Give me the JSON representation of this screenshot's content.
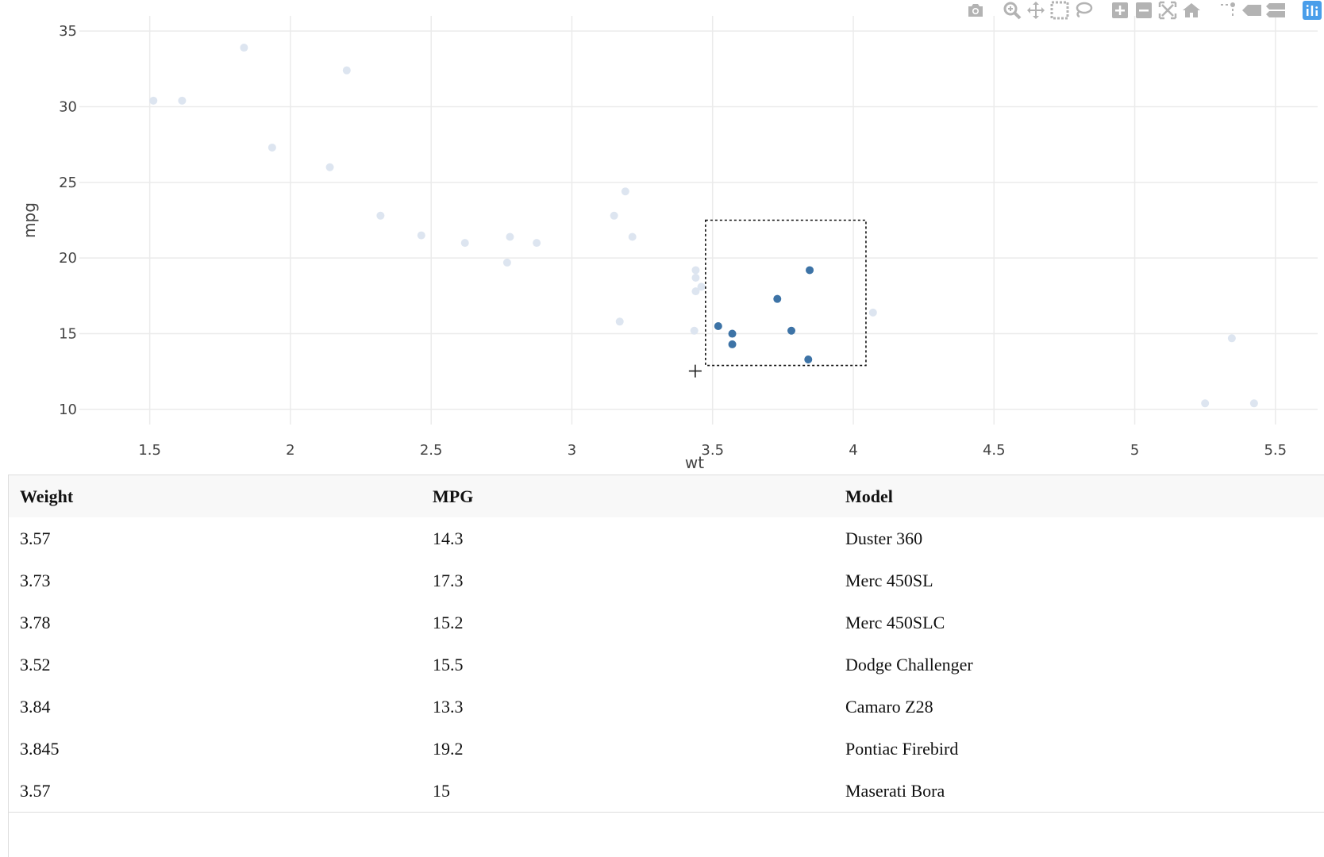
{
  "chart_data": {
    "type": "scatter",
    "xlabel": "wt",
    "ylabel": "mpg",
    "xlim": [
      1.25,
      5.65
    ],
    "ylim": [
      9,
      36
    ],
    "xticks": [
      1.5,
      2,
      2.5,
      3,
      3.5,
      4,
      4.5,
      5,
      5.5
    ],
    "yticks": [
      10,
      15,
      20,
      25,
      30,
      35
    ],
    "xtick_labels": [
      "1.5",
      "2",
      "2.5",
      "3",
      "3.5",
      "4",
      "4.5",
      "5",
      "5.5"
    ],
    "ytick_labels": [
      "10",
      "15",
      "20",
      "25",
      "30",
      "35"
    ],
    "grid": true,
    "selection_box": {
      "x": [
        3.475,
        4.045
      ],
      "y": [
        12.9,
        22.5
      ]
    },
    "colors": {
      "selected": "#3d73a6",
      "unselected": "#dde5f0",
      "grid": "#ebebeb",
      "modebar": "#b3b3b3",
      "modebar_active": "#4a9eea"
    },
    "points": [
      {
        "x": 2.62,
        "y": 21.0,
        "selected": false
      },
      {
        "x": 2.875,
        "y": 21.0,
        "selected": false
      },
      {
        "x": 2.32,
        "y": 22.8,
        "selected": false
      },
      {
        "x": 3.215,
        "y": 21.4,
        "selected": false
      },
      {
        "x": 3.44,
        "y": 18.7,
        "selected": false
      },
      {
        "x": 3.46,
        "y": 18.1,
        "selected": false
      },
      {
        "x": 3.57,
        "y": 14.3,
        "selected": true
      },
      {
        "x": 3.19,
        "y": 24.4,
        "selected": false
      },
      {
        "x": 3.15,
        "y": 22.8,
        "selected": false
      },
      {
        "x": 3.44,
        "y": 19.2,
        "selected": false
      },
      {
        "x": 3.44,
        "y": 17.8,
        "selected": false
      },
      {
        "x": 4.07,
        "y": 16.4,
        "selected": false
      },
      {
        "x": 3.73,
        "y": 17.3,
        "selected": true
      },
      {
        "x": 3.78,
        "y": 15.2,
        "selected": true
      },
      {
        "x": 5.25,
        "y": 10.4,
        "selected": false
      },
      {
        "x": 5.424,
        "y": 10.4,
        "selected": false
      },
      {
        "x": 5.345,
        "y": 14.7,
        "selected": false
      },
      {
        "x": 2.2,
        "y": 32.4,
        "selected": false
      },
      {
        "x": 1.615,
        "y": 30.4,
        "selected": false
      },
      {
        "x": 1.835,
        "y": 33.9,
        "selected": false
      },
      {
        "x": 2.465,
        "y": 21.5,
        "selected": false
      },
      {
        "x": 3.52,
        "y": 15.5,
        "selected": true
      },
      {
        "x": 3.435,
        "y": 15.2,
        "selected": false
      },
      {
        "x": 3.84,
        "y": 13.3,
        "selected": true
      },
      {
        "x": 3.845,
        "y": 19.2,
        "selected": true
      },
      {
        "x": 1.935,
        "y": 27.3,
        "selected": false
      },
      {
        "x": 2.14,
        "y": 26.0,
        "selected": false
      },
      {
        "x": 1.513,
        "y": 30.4,
        "selected": false
      },
      {
        "x": 3.17,
        "y": 15.8,
        "selected": false
      },
      {
        "x": 2.77,
        "y": 19.7,
        "selected": false
      },
      {
        "x": 3.57,
        "y": 15.0,
        "selected": true
      },
      {
        "x": 2.78,
        "y": 21.4,
        "selected": false
      }
    ]
  },
  "modebar": {
    "buttons": [
      "camera-icon",
      "zoom-icon",
      "pan-icon",
      "box-select-icon",
      "lasso-select-icon",
      "zoom-in-icon",
      "zoom-out-icon",
      "autoscale-icon",
      "reset-axes-icon",
      "spike-lines-icon",
      "hover-closest-icon",
      "hover-compare-icon",
      "plotly-logo-icon"
    ]
  },
  "table": {
    "headers": [
      "Weight",
      "MPG",
      "Model"
    ],
    "rows": [
      [
        "3.57",
        "14.3",
        "Duster 360"
      ],
      [
        "3.73",
        "17.3",
        "Merc 450SL"
      ],
      [
        "3.78",
        "15.2",
        "Merc 450SLC"
      ],
      [
        "3.52",
        "15.5",
        "Dodge Challenger"
      ],
      [
        "3.84",
        "13.3",
        "Camaro Z28"
      ],
      [
        "3.845",
        "19.2",
        "Pontiac Firebird"
      ],
      [
        "3.57",
        "15",
        "Maserati Bora"
      ]
    ]
  }
}
